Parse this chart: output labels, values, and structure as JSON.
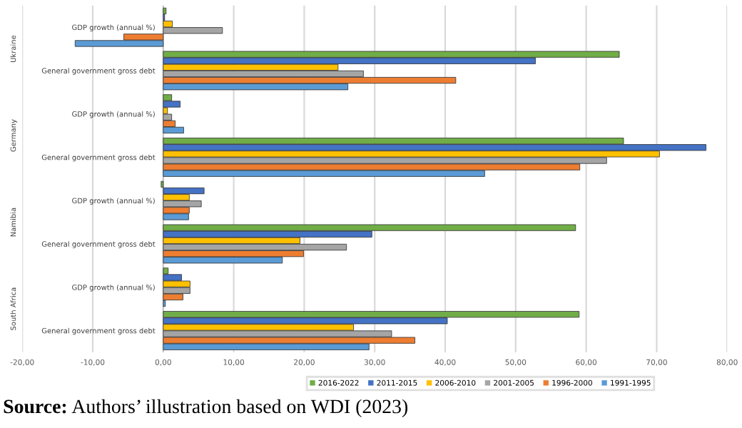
{
  "chart_data": {
    "type": "bar",
    "orientation": "horizontal",
    "categories": [
      "GDP growth (annual %)",
      "General government gross debt",
      "GDP growth (annual %)",
      "General government gross debt",
      "GDP growth (annual %)",
      "General government gross debt",
      "GDP growth (annual %)",
      "General government gross debt"
    ],
    "series": [
      {
        "name": "2016-2022",
        "color": "#70ad47",
        "values": [
          0.4,
          64.7,
          1.2,
          65.3,
          -0.3,
          58.5,
          0.7,
          59.0
        ]
      },
      {
        "name": "2011-2015",
        "color": "#4472c4",
        "values": [
          0.2,
          52.8,
          2.4,
          77.0,
          5.8,
          29.6,
          2.6,
          40.3
        ]
      },
      {
        "name": "2006-2010",
        "color": "#ffc000",
        "values": [
          1.3,
          24.8,
          0.6,
          70.4,
          3.7,
          19.4,
          3.8,
          27.0
        ]
      },
      {
        "name": "2001-2005",
        "color": "#a5a5a5",
        "values": [
          8.4,
          28.4,
          1.2,
          62.9,
          5.4,
          26.0,
          3.8,
          32.4
        ]
      },
      {
        "name": "1996-2000",
        "color": "#ed7d31",
        "values": [
          -5.6,
          41.5,
          1.7,
          59.1,
          3.7,
          19.9,
          2.8,
          35.7
        ]
      },
      {
        "name": "1991-1995",
        "color": "#5b9bd5",
        "values": [
          -12.5,
          26.2,
          2.9,
          45.6,
          3.6,
          16.9,
          0.3,
          29.2
        ]
      }
    ],
    "xlim": [
      -20,
      80
    ],
    "xticks": [
      {
        "value": -20,
        "label": "-20,00"
      },
      {
        "value": -10,
        "label": "-10,00"
      },
      {
        "value": 0,
        "label": "0,00"
      },
      {
        "value": 10,
        "label": "10,00"
      },
      {
        "value": 20,
        "label": "20,00"
      },
      {
        "value": 30,
        "label": "30,00"
      },
      {
        "value": 40,
        "label": "40,00"
      },
      {
        "value": 50,
        "label": "50,00"
      },
      {
        "value": 60,
        "label": "60,00"
      },
      {
        "value": 70,
        "label": "70,00"
      },
      {
        "value": 80,
        "label": "80,00"
      }
    ],
    "grid": "x",
    "legend": "bottom",
    "annotations": [
      "Ukraine",
      "Germany",
      "Namibia",
      "South Africa",
      "Source: Authors’ illustration based on WDI (2023)"
    ]
  }
}
